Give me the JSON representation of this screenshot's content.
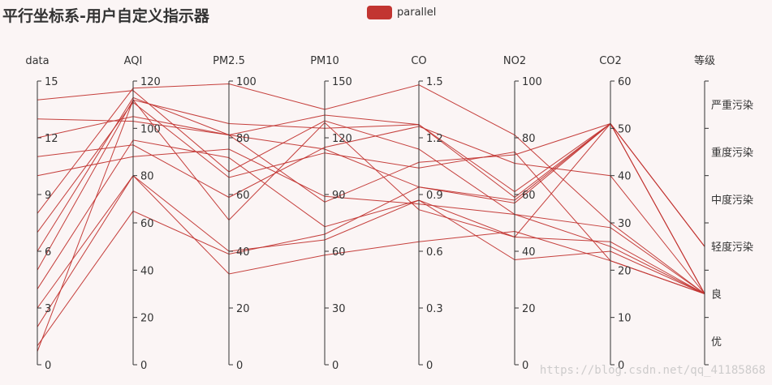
{
  "chart_data": {
    "type": "parallel",
    "title": "平行坐标系-用户自定义指示器",
    "legend": {
      "name": "parallel",
      "color": "#c23531",
      "placement": "top-center"
    },
    "axes": [
      {
        "name": "data",
        "min": 0,
        "max": 15,
        "ticks": [
          "0",
          "3",
          "6",
          "9",
          "12",
          "15"
        ]
      },
      {
        "name": "AQI",
        "min": 0,
        "max": 120,
        "ticks": [
          "0",
          "20",
          "40",
          "60",
          "80",
          "100",
          "120"
        ]
      },
      {
        "name": "PM2.5",
        "min": 0,
        "max": 100,
        "ticks": [
          "0",
          "20",
          "40",
          "60",
          "80",
          "100"
        ]
      },
      {
        "name": "PM10",
        "min": 0,
        "max": 150,
        "ticks": [
          "0",
          "30",
          "60",
          "90",
          "120",
          "150"
        ]
      },
      {
        "name": "CO",
        "min": 0,
        "max": 1.5,
        "ticks": [
          "0",
          "0.3",
          "0.6",
          "0.9",
          "1.2",
          "1.5"
        ]
      },
      {
        "name": "NO2",
        "min": 0,
        "max": 100,
        "ticks": [
          "0",
          "20",
          "40",
          "60",
          "80",
          "100"
        ]
      },
      {
        "name": "CO2",
        "min": 0,
        "max": 60,
        "ticks": [
          "0",
          "10",
          "20",
          "30",
          "40",
          "50",
          "60"
        ]
      },
      {
        "name": "等级",
        "type": "category",
        "categories": [
          "优",
          "良",
          "轻度污染",
          "中度污染",
          "重度污染",
          "严重污染"
        ]
      }
    ],
    "series": [
      [
        14,
        116,
        68,
        129,
        1.14,
        53,
        29,
        "良"
      ],
      [
        13,
        103,
        81,
        86,
        1.07,
        74,
        51,
        "良"
      ],
      [
        12,
        105,
        81,
        132,
        1.27,
        61,
        51,
        "轻度污染"
      ],
      [
        11,
        93,
        59,
        115,
        1.26,
        71,
        40,
        "良"
      ],
      [
        10,
        88,
        76,
        89,
        0.85,
        53,
        25,
        "良"
      ],
      [
        8,
        117,
        99,
        135,
        1.48,
        81,
        30,
        "良"
      ],
      [
        7,
        111,
        66,
        112,
        1.04,
        75,
        22,
        "良"
      ],
      [
        6,
        113,
        81,
        114,
        0.94,
        58,
        51,
        "轻度污染"
      ],
      [
        5,
        112,
        51,
        128,
        0.82,
        45,
        26,
        "良"
      ],
      [
        4,
        95,
        73,
        73,
        0.87,
        37,
        24,
        "良"
      ],
      [
        3,
        80,
        40,
        66,
        0.87,
        45,
        51,
        "轻度污染"
      ],
      [
        2,
        80,
        32,
        58,
        0.65,
        47,
        22,
        "良"
      ],
      [
        1,
        65,
        39,
        69,
        0.94,
        57,
        51,
        "良"
      ],
      [
        0.7,
        112,
        85,
        125,
        1.27,
        59,
        51,
        "良"
      ]
    ]
  },
  "watermark": "https://blog.csdn.net/qq_41185868"
}
